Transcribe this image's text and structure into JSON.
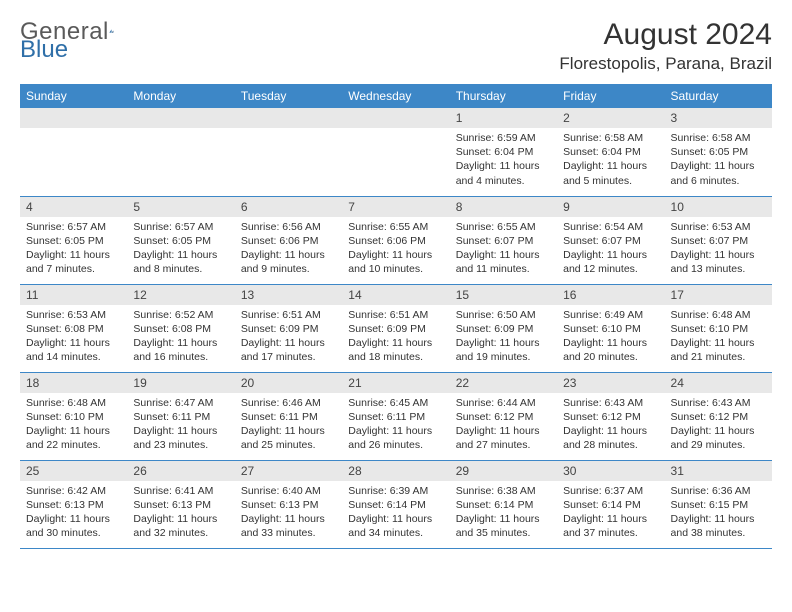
{
  "logo": {
    "word1": "General",
    "word2": "Blue"
  },
  "title": "August 2024",
  "location": "Florestopolis, Parana, Brazil",
  "colors": {
    "header_bg": "#3d87c7",
    "header_text": "#ffffff",
    "daynum_bg": "#e8e8e8",
    "border": "#3d87c7",
    "logo_gray": "#5a5a5a",
    "logo_blue": "#2f6fa8"
  },
  "daynames": [
    "Sunday",
    "Monday",
    "Tuesday",
    "Wednesday",
    "Thursday",
    "Friday",
    "Saturday"
  ],
  "weeks": [
    [
      null,
      null,
      null,
      null,
      {
        "n": "1",
        "sunrise": "Sunrise: 6:59 AM",
        "sunset": "Sunset: 6:04 PM",
        "daylight": "Daylight: 11 hours and 4 minutes."
      },
      {
        "n": "2",
        "sunrise": "Sunrise: 6:58 AM",
        "sunset": "Sunset: 6:04 PM",
        "daylight": "Daylight: 11 hours and 5 minutes."
      },
      {
        "n": "3",
        "sunrise": "Sunrise: 6:58 AM",
        "sunset": "Sunset: 6:05 PM",
        "daylight": "Daylight: 11 hours and 6 minutes."
      }
    ],
    [
      {
        "n": "4",
        "sunrise": "Sunrise: 6:57 AM",
        "sunset": "Sunset: 6:05 PM",
        "daylight": "Daylight: 11 hours and 7 minutes."
      },
      {
        "n": "5",
        "sunrise": "Sunrise: 6:57 AM",
        "sunset": "Sunset: 6:05 PM",
        "daylight": "Daylight: 11 hours and 8 minutes."
      },
      {
        "n": "6",
        "sunrise": "Sunrise: 6:56 AM",
        "sunset": "Sunset: 6:06 PM",
        "daylight": "Daylight: 11 hours and 9 minutes."
      },
      {
        "n": "7",
        "sunrise": "Sunrise: 6:55 AM",
        "sunset": "Sunset: 6:06 PM",
        "daylight": "Daylight: 11 hours and 10 minutes."
      },
      {
        "n": "8",
        "sunrise": "Sunrise: 6:55 AM",
        "sunset": "Sunset: 6:07 PM",
        "daylight": "Daylight: 11 hours and 11 minutes."
      },
      {
        "n": "9",
        "sunrise": "Sunrise: 6:54 AM",
        "sunset": "Sunset: 6:07 PM",
        "daylight": "Daylight: 11 hours and 12 minutes."
      },
      {
        "n": "10",
        "sunrise": "Sunrise: 6:53 AM",
        "sunset": "Sunset: 6:07 PM",
        "daylight": "Daylight: 11 hours and 13 minutes."
      }
    ],
    [
      {
        "n": "11",
        "sunrise": "Sunrise: 6:53 AM",
        "sunset": "Sunset: 6:08 PM",
        "daylight": "Daylight: 11 hours and 14 minutes."
      },
      {
        "n": "12",
        "sunrise": "Sunrise: 6:52 AM",
        "sunset": "Sunset: 6:08 PM",
        "daylight": "Daylight: 11 hours and 16 minutes."
      },
      {
        "n": "13",
        "sunrise": "Sunrise: 6:51 AM",
        "sunset": "Sunset: 6:09 PM",
        "daylight": "Daylight: 11 hours and 17 minutes."
      },
      {
        "n": "14",
        "sunrise": "Sunrise: 6:51 AM",
        "sunset": "Sunset: 6:09 PM",
        "daylight": "Daylight: 11 hours and 18 minutes."
      },
      {
        "n": "15",
        "sunrise": "Sunrise: 6:50 AM",
        "sunset": "Sunset: 6:09 PM",
        "daylight": "Daylight: 11 hours and 19 minutes."
      },
      {
        "n": "16",
        "sunrise": "Sunrise: 6:49 AM",
        "sunset": "Sunset: 6:10 PM",
        "daylight": "Daylight: 11 hours and 20 minutes."
      },
      {
        "n": "17",
        "sunrise": "Sunrise: 6:48 AM",
        "sunset": "Sunset: 6:10 PM",
        "daylight": "Daylight: 11 hours and 21 minutes."
      }
    ],
    [
      {
        "n": "18",
        "sunrise": "Sunrise: 6:48 AM",
        "sunset": "Sunset: 6:10 PM",
        "daylight": "Daylight: 11 hours and 22 minutes."
      },
      {
        "n": "19",
        "sunrise": "Sunrise: 6:47 AM",
        "sunset": "Sunset: 6:11 PM",
        "daylight": "Daylight: 11 hours and 23 minutes."
      },
      {
        "n": "20",
        "sunrise": "Sunrise: 6:46 AM",
        "sunset": "Sunset: 6:11 PM",
        "daylight": "Daylight: 11 hours and 25 minutes."
      },
      {
        "n": "21",
        "sunrise": "Sunrise: 6:45 AM",
        "sunset": "Sunset: 6:11 PM",
        "daylight": "Daylight: 11 hours and 26 minutes."
      },
      {
        "n": "22",
        "sunrise": "Sunrise: 6:44 AM",
        "sunset": "Sunset: 6:12 PM",
        "daylight": "Daylight: 11 hours and 27 minutes."
      },
      {
        "n": "23",
        "sunrise": "Sunrise: 6:43 AM",
        "sunset": "Sunset: 6:12 PM",
        "daylight": "Daylight: 11 hours and 28 minutes."
      },
      {
        "n": "24",
        "sunrise": "Sunrise: 6:43 AM",
        "sunset": "Sunset: 6:12 PM",
        "daylight": "Daylight: 11 hours and 29 minutes."
      }
    ],
    [
      {
        "n": "25",
        "sunrise": "Sunrise: 6:42 AM",
        "sunset": "Sunset: 6:13 PM",
        "daylight": "Daylight: 11 hours and 30 minutes."
      },
      {
        "n": "26",
        "sunrise": "Sunrise: 6:41 AM",
        "sunset": "Sunset: 6:13 PM",
        "daylight": "Daylight: 11 hours and 32 minutes."
      },
      {
        "n": "27",
        "sunrise": "Sunrise: 6:40 AM",
        "sunset": "Sunset: 6:13 PM",
        "daylight": "Daylight: 11 hours and 33 minutes."
      },
      {
        "n": "28",
        "sunrise": "Sunrise: 6:39 AM",
        "sunset": "Sunset: 6:14 PM",
        "daylight": "Daylight: 11 hours and 34 minutes."
      },
      {
        "n": "29",
        "sunrise": "Sunrise: 6:38 AM",
        "sunset": "Sunset: 6:14 PM",
        "daylight": "Daylight: 11 hours and 35 minutes."
      },
      {
        "n": "30",
        "sunrise": "Sunrise: 6:37 AM",
        "sunset": "Sunset: 6:14 PM",
        "daylight": "Daylight: 11 hours and 37 minutes."
      },
      {
        "n": "31",
        "sunrise": "Sunrise: 6:36 AM",
        "sunset": "Sunset: 6:15 PM",
        "daylight": "Daylight: 11 hours and 38 minutes."
      }
    ]
  ]
}
